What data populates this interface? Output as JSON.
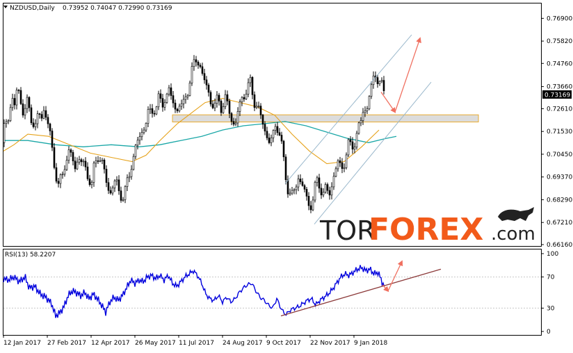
{
  "header": {
    "symbol": "NZDUSD,Daily",
    "ohlc": "0.73952 0.74047 0.72990 0.73169",
    "rsi_label": "RSI(13) 58.2207"
  },
  "price_badge": "0.73169",
  "watermark": {
    "tor": "TOR",
    "forex": "FOREX",
    "dotcom": ".com"
  },
  "colors": {
    "candle": "#000000",
    "ma_fast": "#e6a21a",
    "ma_slow": "#1aa7a7",
    "rsi": "#0000dd",
    "arrow": "#f07060",
    "trendline": "#8c3a3a",
    "channel": "#9ab8cc",
    "zone_fill": "#d9d9d9",
    "zone_border": "#e6a21a",
    "brand_orange": "#f25a1a",
    "brand_dark": "#222222"
  },
  "chart_data": [
    {
      "type": "candlestick",
      "title": "NZDUSD,Daily",
      "ylim": [
        0.6616,
        0.7711
      ],
      "yticks": [
        "0.76900",
        "0.75820",
        "0.74760",
        "0.73660",
        "0.72610",
        "0.71530",
        "0.70450",
        "0.69370",
        "0.68290",
        "0.67210",
        "0.66160"
      ],
      "xlabels": [
        "12 Jan 2017",
        "27 Feb 2017",
        "12 Apr 2017",
        "26 May 2017",
        "11 Jul 2017",
        "24 Aug 2017",
        "9 Oct 2017",
        "22 Nov 2017",
        "9 Jan 2018"
      ],
      "close_path": [
        [
          0,
          0.71
        ],
        [
          6,
          0.718
        ],
        [
          12,
          0.722
        ],
        [
          16,
          0.733
        ],
        [
          20,
          0.728
        ],
        [
          24,
          0.735
        ],
        [
          28,
          0.731
        ],
        [
          33,
          0.725
        ],
        [
          38,
          0.728
        ],
        [
          44,
          0.722
        ],
        [
          50,
          0.718
        ],
        [
          55,
          0.724
        ],
        [
          58,
          0.721
        ],
        [
          62,
          0.726
        ],
        [
          66,
          0.722
        ],
        [
          70,
          0.716
        ],
        [
          74,
          0.706
        ],
        [
          78,
          0.698
        ],
        [
          83,
          0.69
        ],
        [
          88,
          0.692
        ],
        [
          92,
          0.7
        ],
        [
          97,
          0.706
        ],
        [
          102,
          0.703
        ],
        [
          107,
          0.698
        ],
        [
          112,
          0.704
        ],
        [
          117,
          0.7
        ],
        [
          122,
          0.697
        ],
        [
          127,
          0.694
        ],
        [
          131,
          0.69
        ],
        [
          135,
          0.699
        ],
        [
          140,
          0.704
        ],
        [
          145,
          0.702
        ],
        [
          149,
          0.696
        ],
        [
          153,
          0.689
        ],
        [
          157,
          0.686
        ],
        [
          161,
          0.69
        ],
        [
          165,
          0.692
        ],
        [
          170,
          0.686
        ],
        [
          175,
          0.685
        ],
        [
          180,
          0.688
        ],
        [
          184,
          0.692
        ],
        [
          188,
          0.7
        ],
        [
          192,
          0.706
        ],
        [
          197,
          0.71
        ],
        [
          202,
          0.714
        ],
        [
          207,
          0.718
        ],
        [
          212,
          0.725
        ],
        [
          217,
          0.722
        ],
        [
          222,
          0.728
        ],
        [
          227,
          0.731
        ],
        [
          232,
          0.726
        ],
        [
          237,
          0.733
        ],
        [
          242,
          0.735
        ],
        [
          247,
          0.729
        ],
        [
          252,
          0.725
        ],
        [
          257,
          0.729
        ],
        [
          262,
          0.726
        ],
        [
          267,
          0.733
        ],
        [
          272,
          0.74
        ],
        [
          277,
          0.746
        ],
        [
          282,
          0.75
        ],
        [
          286,
          0.748
        ],
        [
          290,
          0.742
        ],
        [
          294,
          0.738
        ],
        [
          298,
          0.735
        ],
        [
          303,
          0.729
        ],
        [
          308,
          0.727
        ],
        [
          313,
          0.731
        ],
        [
          318,
          0.727
        ],
        [
          323,
          0.73
        ],
        [
          328,
          0.726
        ],
        [
          333,
          0.721
        ],
        [
          337,
          0.717
        ],
        [
          341,
          0.724
        ],
        [
          346,
          0.731
        ],
        [
          350,
          0.733
        ],
        [
          354,
          0.735
        ],
        [
          359,
          0.738
        ],
        [
          364,
          0.731
        ],
        [
          369,
          0.727
        ],
        [
          373,
          0.722
        ],
        [
          377,
          0.72
        ],
        [
          381,
          0.716
        ],
        [
          385,
          0.709
        ],
        [
          390,
          0.712
        ],
        [
          395,
          0.718
        ],
        [
          400,
          0.717
        ],
        [
          404,
          0.708
        ],
        [
          408,
          0.698
        ],
        [
          412,
          0.69
        ],
        [
          416,
          0.686
        ],
        [
          420,
          0.684
        ],
        [
          424,
          0.689
        ],
        [
          428,
          0.694
        ],
        [
          432,
          0.691
        ],
        [
          436,
          0.688
        ],
        [
          440,
          0.683
        ],
        [
          444,
          0.68
        ],
        [
          448,
          0.682
        ],
        [
          452,
          0.688
        ],
        [
          456,
          0.692
        ],
        [
          460,
          0.689
        ],
        [
          464,
          0.686
        ],
        [
          468,
          0.688
        ],
        [
          472,
          0.685
        ],
        [
          476,
          0.69
        ],
        [
          480,
          0.696
        ],
        [
          485,
          0.7
        ],
        [
          490,
          0.698
        ],
        [
          495,
          0.702
        ],
        [
          500,
          0.708
        ],
        [
          505,
          0.709
        ],
        [
          510,
          0.711
        ],
        [
          514,
          0.716
        ],
        [
          518,
          0.72
        ],
        [
          522,
          0.727
        ],
        [
          526,
          0.725
        ],
        [
          530,
          0.732
        ],
        [
          534,
          0.737
        ],
        [
          538,
          0.743
        ],
        [
          542,
          0.741
        ],
        [
          546,
          0.738
        ],
        [
          550,
          0.734
        ],
        [
          553,
          0.732
        ]
      ],
      "ma_fast": [
        [
          5,
          0.706
        ],
        [
          20,
          0.709
        ],
        [
          40,
          0.714
        ],
        [
          70,
          0.713
        ],
        [
          100,
          0.709
        ],
        [
          130,
          0.705
        ],
        [
          160,
          0.703
        ],
        [
          190,
          0.701
        ],
        [
          210,
          0.704
        ],
        [
          230,
          0.711
        ],
        [
          255,
          0.719
        ],
        [
          275,
          0.724
        ],
        [
          295,
          0.729
        ],
        [
          320,
          0.731
        ],
        [
          345,
          0.729
        ],
        [
          370,
          0.727
        ],
        [
          395,
          0.723
        ],
        [
          420,
          0.714
        ],
        [
          445,
          0.706
        ],
        [
          470,
          0.7
        ],
        [
          495,
          0.701
        ],
        [
          520,
          0.708
        ],
        [
          545,
          0.716
        ]
      ],
      "ma_slow": [
        [
          5,
          0.711
        ],
        [
          40,
          0.711
        ],
        [
          80,
          0.709
        ],
        [
          120,
          0.708
        ],
        [
          160,
          0.709
        ],
        [
          200,
          0.708
        ],
        [
          230,
          0.709
        ],
        [
          260,
          0.711
        ],
        [
          290,
          0.713
        ],
        [
          320,
          0.716
        ],
        [
          350,
          0.718
        ],
        [
          380,
          0.719
        ],
        [
          410,
          0.72
        ],
        [
          440,
          0.718
        ],
        [
          470,
          0.715
        ],
        [
          500,
          0.712
        ],
        [
          530,
          0.71
        ],
        [
          555,
          0.712
        ],
        [
          570,
          0.713
        ]
      ],
      "zone": {
        "x_start": 248,
        "x_end": 688,
        "y_low": 0.7198,
        "y_high": 0.7232
      },
      "channel": {
        "lower": [
          [
            452,
            0.6713
          ],
          [
            620,
            0.7387
          ]
        ],
        "upper": [
          [
            410,
            0.6905
          ],
          [
            592,
            0.7612
          ]
        ]
      },
      "arrows": [
        {
          "from": [
            548,
            0.734
          ],
          "to": [
            568,
            0.7245
          ]
        },
        {
          "from": [
            568,
            0.7245
          ],
          "to": [
            604,
            0.7595
          ]
        }
      ]
    },
    {
      "type": "line",
      "title": "RSI(13) 58.2207",
      "ylim": [
        0,
        100
      ],
      "yticks": [
        "100",
        "70",
        "30",
        "0"
      ],
      "levels": [
        70,
        30
      ],
      "values": [
        [
          5,
          68
        ],
        [
          12,
          66
        ],
        [
          20,
          70
        ],
        [
          28,
          64
        ],
        [
          36,
          70
        ],
        [
          42,
          56
        ],
        [
          50,
          58
        ],
        [
          58,
          48
        ],
        [
          66,
          44
        ],
        [
          74,
          36
        ],
        [
          80,
          20
        ],
        [
          86,
          24
        ],
        [
          92,
          32
        ],
        [
          98,
          46
        ],
        [
          104,
          52
        ],
        [
          110,
          50
        ],
        [
          116,
          46
        ],
        [
          122,
          50
        ],
        [
          128,
          42
        ],
        [
          134,
          48
        ],
        [
          140,
          42
        ],
        [
          146,
          34
        ],
        [
          152,
          25
        ],
        [
          158,
          38
        ],
        [
          164,
          44
        ],
        [
          170,
          40
        ],
        [
          176,
          46
        ],
        [
          182,
          56
        ],
        [
          188,
          66
        ],
        [
          194,
          62
        ],
        [
          200,
          66
        ],
        [
          206,
          64
        ],
        [
          212,
          70
        ],
        [
          218,
          72
        ],
        [
          224,
          68
        ],
        [
          230,
          72
        ],
        [
          236,
          66
        ],
        [
          242,
          72
        ],
        [
          248,
          62
        ],
        [
          254,
          58
        ],
        [
          260,
          64
        ],
        [
          266,
          70
        ],
        [
          272,
          74
        ],
        [
          278,
          78
        ],
        [
          284,
          72
        ],
        [
          290,
          62
        ],
        [
          296,
          48
        ],
        [
          302,
          42
        ],
        [
          308,
          40
        ],
        [
          314,
          46
        ],
        [
          320,
          38
        ],
        [
          326,
          44
        ],
        [
          332,
          38
        ],
        [
          338,
          42
        ],
        [
          344,
          50
        ],
        [
          350,
          56
        ],
        [
          356,
          60
        ],
        [
          362,
          62
        ],
        [
          368,
          52
        ],
        [
          374,
          44
        ],
        [
          380,
          40
        ],
        [
          386,
          34
        ],
        [
          392,
          30
        ],
        [
          398,
          42
        ],
        [
          404,
          30
        ],
        [
          408,
          24
        ],
        [
          412,
          22
        ],
        [
          418,
          28
        ],
        [
          424,
          30
        ],
        [
          430,
          32
        ],
        [
          436,
          36
        ],
        [
          442,
          40
        ],
        [
          448,
          42
        ],
        [
          454,
          34
        ],
        [
          460,
          40
        ],
        [
          466,
          44
        ],
        [
          472,
          48
        ],
        [
          478,
          54
        ],
        [
          484,
          62
        ],
        [
          490,
          70
        ],
        [
          496,
          74
        ],
        [
          502,
          72
        ],
        [
          508,
          76
        ],
        [
          514,
          80
        ],
        [
          520,
          82
        ],
        [
          526,
          78
        ],
        [
          532,
          80
        ],
        [
          538,
          74
        ],
        [
          544,
          76
        ],
        [
          550,
          62
        ],
        [
          553,
          58
        ]
      ],
      "trendline": [
        [
          404,
          20
        ],
        [
          634,
          80
        ]
      ],
      "arrows": [
        {
          "from": [
            550,
            60
          ],
          "to": [
            558,
            52
          ]
        },
        {
          "from": [
            558,
            52
          ],
          "to": [
            578,
            90
          ]
        }
      ]
    }
  ]
}
